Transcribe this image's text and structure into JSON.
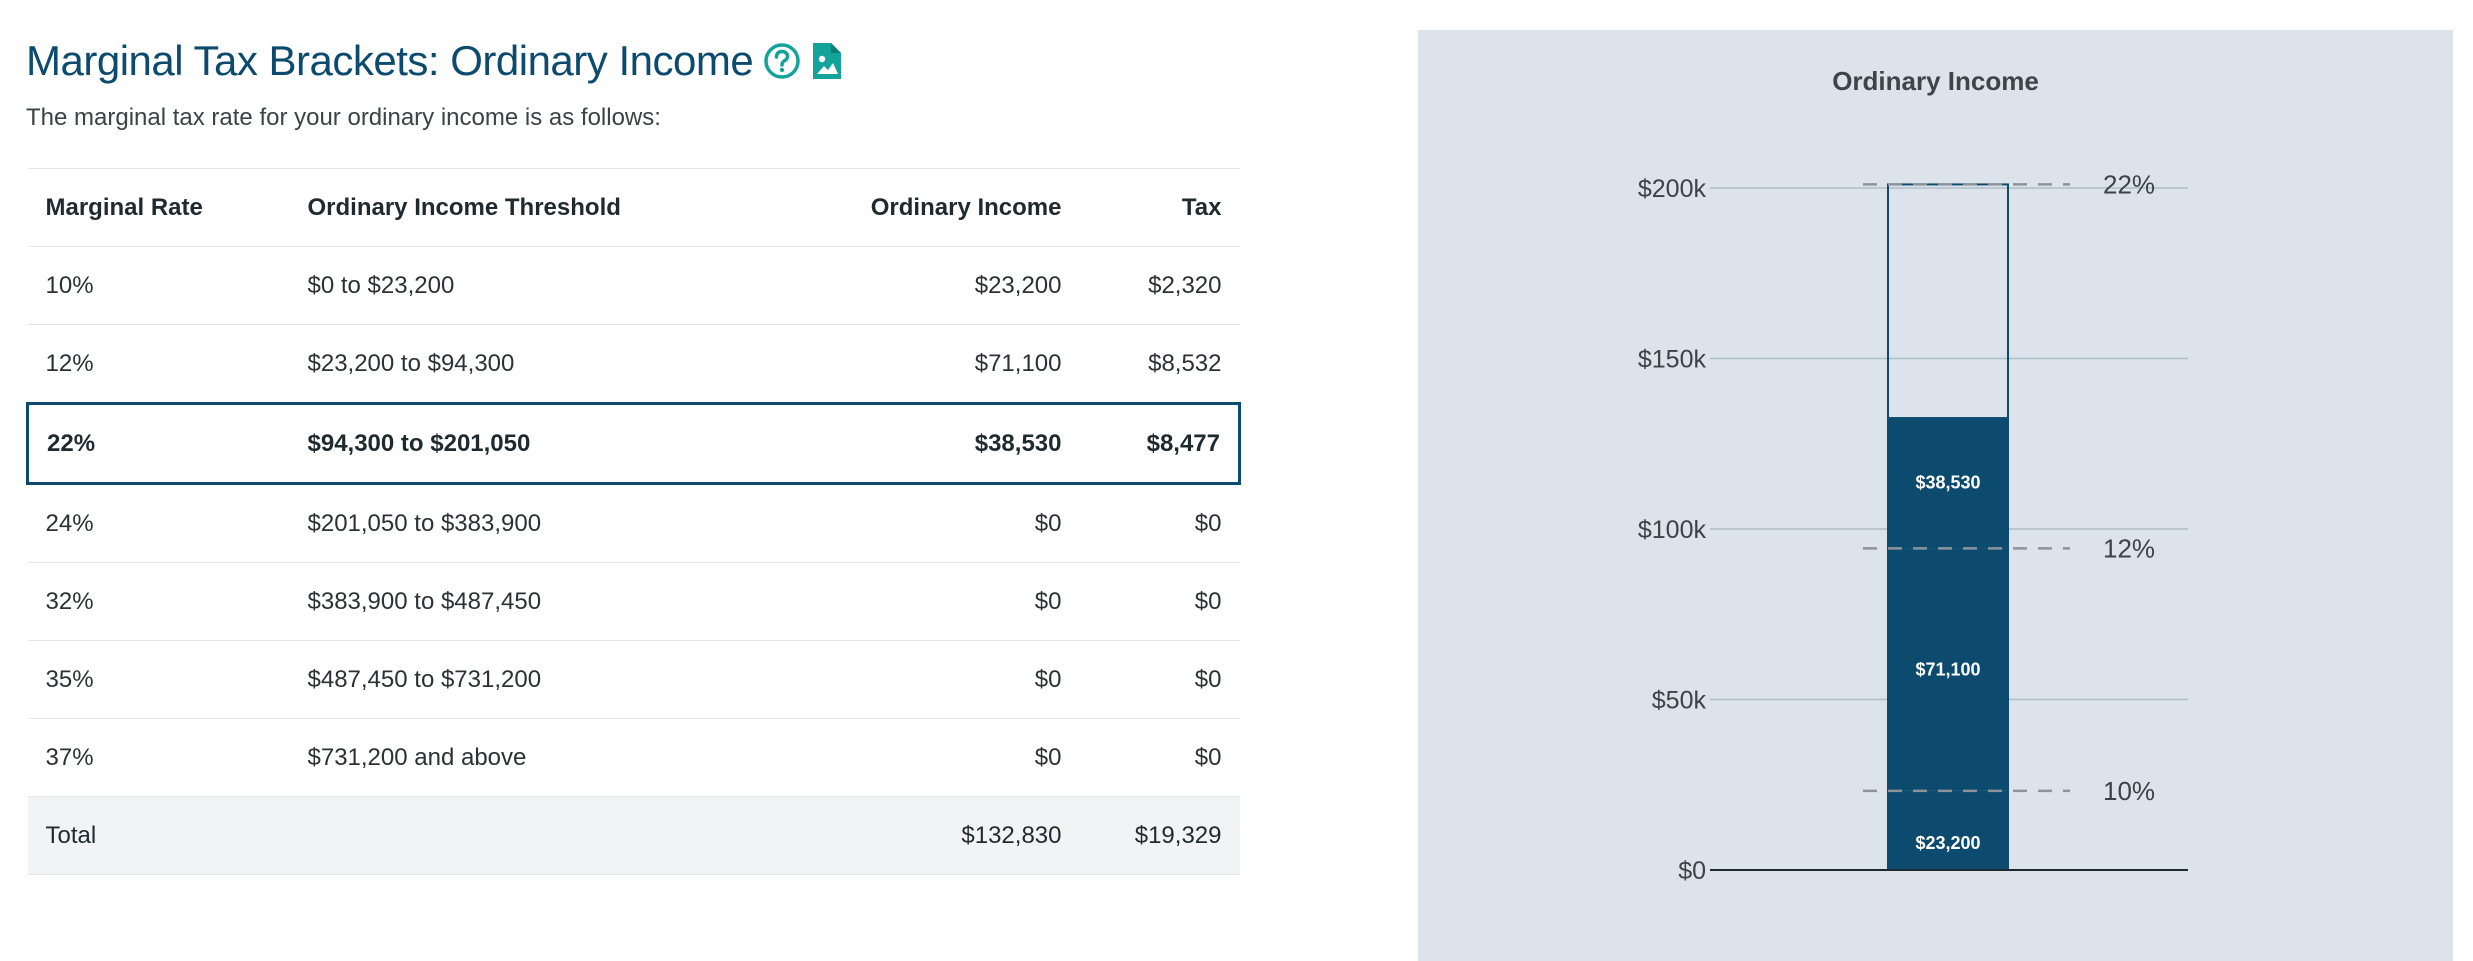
{
  "header": {
    "title": "Marginal Tax Brackets: Ordinary Income",
    "subtitle": "The marginal tax rate for your ordinary income is as follows:",
    "help_icon": "question-circle-icon",
    "export_icon": "image-file-icon",
    "accent_color": "#0c4a6e",
    "icon_color": "#14a39a"
  },
  "table": {
    "columns": [
      "Marginal Rate",
      "Ordinary Income Threshold",
      "Ordinary Income",
      "Tax"
    ],
    "rows": [
      {
        "rate": "10%",
        "threshold": "$0 to $23,200",
        "income": "$23,200",
        "tax": "$2,320",
        "active": false
      },
      {
        "rate": "12%",
        "threshold": "$23,200 to $94,300",
        "income": "$71,100",
        "tax": "$8,532",
        "active": false
      },
      {
        "rate": "22%",
        "threshold": "$94,300 to $201,050",
        "income": "$38,530",
        "tax": "$8,477",
        "active": true
      },
      {
        "rate": "24%",
        "threshold": "$201,050 to $383,900",
        "income": "$0",
        "tax": "$0",
        "active": false
      },
      {
        "rate": "32%",
        "threshold": "$383,900 to $487,450",
        "income": "$0",
        "tax": "$0",
        "active": false
      },
      {
        "rate": "35%",
        "threshold": "$487,450 to $731,200",
        "income": "$0",
        "tax": "$0",
        "active": false
      },
      {
        "rate": "37%",
        "threshold": "$731,200 and above",
        "income": "$0",
        "tax": "$0",
        "active": false
      }
    ],
    "total": {
      "label": "Total",
      "income": "$132,830",
      "tax": "$19,329"
    }
  },
  "chart_data": {
    "type": "bar",
    "title": "Ordinary Income",
    "ylim": [
      0,
      200000
    ],
    "yticks": [
      0,
      50000,
      100000,
      150000,
      200000
    ],
    "ytick_labels": [
      "$0",
      "$50k",
      "$100k",
      "$150k",
      "$200k"
    ],
    "segments": [
      {
        "label": "$23,200",
        "value": 23200
      },
      {
        "label": "$71,100",
        "value": 71100
      },
      {
        "label": "$38,530",
        "value": 38530
      }
    ],
    "outline_top": 201050,
    "bracket_lines": [
      {
        "label": "10%",
        "value": 23200
      },
      {
        "label": "12%",
        "value": 94300
      },
      {
        "label": "22%",
        "value": 201050
      }
    ],
    "bar_color": "#0c4a6e",
    "background_color": "#dce3ea",
    "grid": true
  }
}
